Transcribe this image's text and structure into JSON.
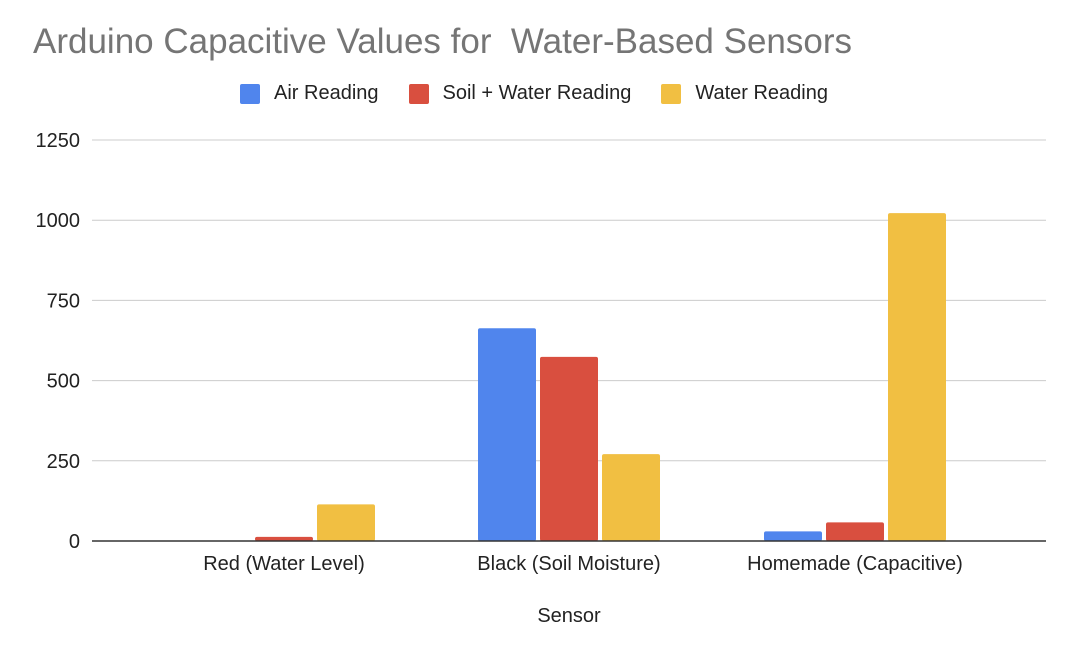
{
  "chart_data": {
    "type": "bar",
    "title": "Arduino Capacitive Values for  Water-Based Sensors",
    "xlabel": "Sensor",
    "ylabel": "",
    "categories": [
      "Red (Water Level)",
      "Black (Soil Moisture)",
      "Homemade (Capacitive)"
    ],
    "series": [
      {
        "name": "Air Reading",
        "color": "#5085ed",
        "values": [
          0,
          663,
          30
        ]
      },
      {
        "name": "Soil + Water Reading",
        "color": "#d94f3f",
        "values": [
          13,
          574,
          58
        ]
      },
      {
        "name": "Water Reading",
        "color": "#f1bf42",
        "values": [
          114,
          271,
          1022
        ]
      }
    ],
    "ylim": [
      0,
      1250
    ],
    "yticks": [
      0,
      250,
      500,
      750,
      1000,
      1250
    ],
    "grid": true,
    "legend_position": "top-center"
  }
}
